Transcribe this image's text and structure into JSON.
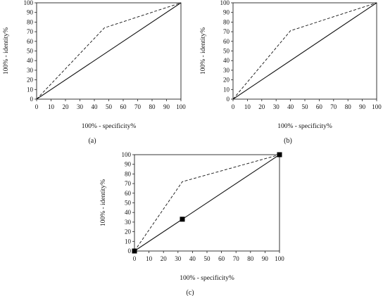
{
  "chart_data": [
    {
      "type": "line",
      "panel_label": "(a)",
      "xlabel": "100% - specificity%",
      "ylabel": "100% - identity%",
      "xlim": [
        0,
        100
      ],
      "ylim": [
        0,
        100
      ],
      "x_ticks": [
        "0",
        "10",
        "20",
        "30",
        "40",
        "50",
        "60",
        "70",
        "80",
        "90",
        "100"
      ],
      "y_ticks": [
        "0",
        "10",
        "20",
        "30",
        "40",
        "50",
        "60",
        "70",
        "80",
        "90",
        "100"
      ],
      "grid": false,
      "series": [
        {
          "style": "dashed",
          "x": [
            0,
            47,
            100
          ],
          "y": [
            0,
            74,
            100
          ]
        },
        {
          "style": "solid",
          "x": [
            0,
            100
          ],
          "y": [
            0,
            100
          ]
        }
      ],
      "markers": []
    },
    {
      "type": "line",
      "panel_label": "(b)",
      "xlabel": "100% - specificity%",
      "ylabel": "100% - identity%",
      "xlim": [
        0,
        100
      ],
      "ylim": [
        0,
        100
      ],
      "x_ticks": [
        "0",
        "10",
        "20",
        "30",
        "40",
        "50",
        "60",
        "70",
        "80",
        "90",
        "100"
      ],
      "y_ticks": [
        "0",
        "10",
        "20",
        "30",
        "40",
        "50",
        "60",
        "70",
        "80",
        "90",
        "100"
      ],
      "grid": false,
      "series": [
        {
          "style": "dashed",
          "x": [
            0,
            40,
            100
          ],
          "y": [
            0,
            71,
            100
          ]
        },
        {
          "style": "solid",
          "x": [
            0,
            100
          ],
          "y": [
            0,
            100
          ]
        }
      ],
      "markers": []
    },
    {
      "type": "line",
      "panel_label": "(c)",
      "xlabel": "100% - specificity%",
      "ylabel": "100% - identity%",
      "xlim": [
        0,
        100
      ],
      "ylim": [
        0,
        100
      ],
      "x_ticks": [
        "0",
        "10",
        "20",
        "30",
        "40",
        "50",
        "60",
        "70",
        "80",
        "90",
        "100"
      ],
      "y_ticks": [
        "0",
        "10",
        "20",
        "30",
        "40",
        "50",
        "60",
        "70",
        "80",
        "90",
        "100"
      ],
      "grid": false,
      "series": [
        {
          "style": "dashed",
          "x": [
            0,
            33,
            100
          ],
          "y": [
            0,
            72,
            100
          ]
        },
        {
          "style": "solid",
          "x": [
            0,
            100
          ],
          "y": [
            0,
            100
          ]
        }
      ],
      "markers": [
        {
          "x": 0,
          "y": 0
        },
        {
          "x": 33,
          "y": 33
        },
        {
          "x": 100,
          "y": 100
        }
      ]
    }
  ]
}
